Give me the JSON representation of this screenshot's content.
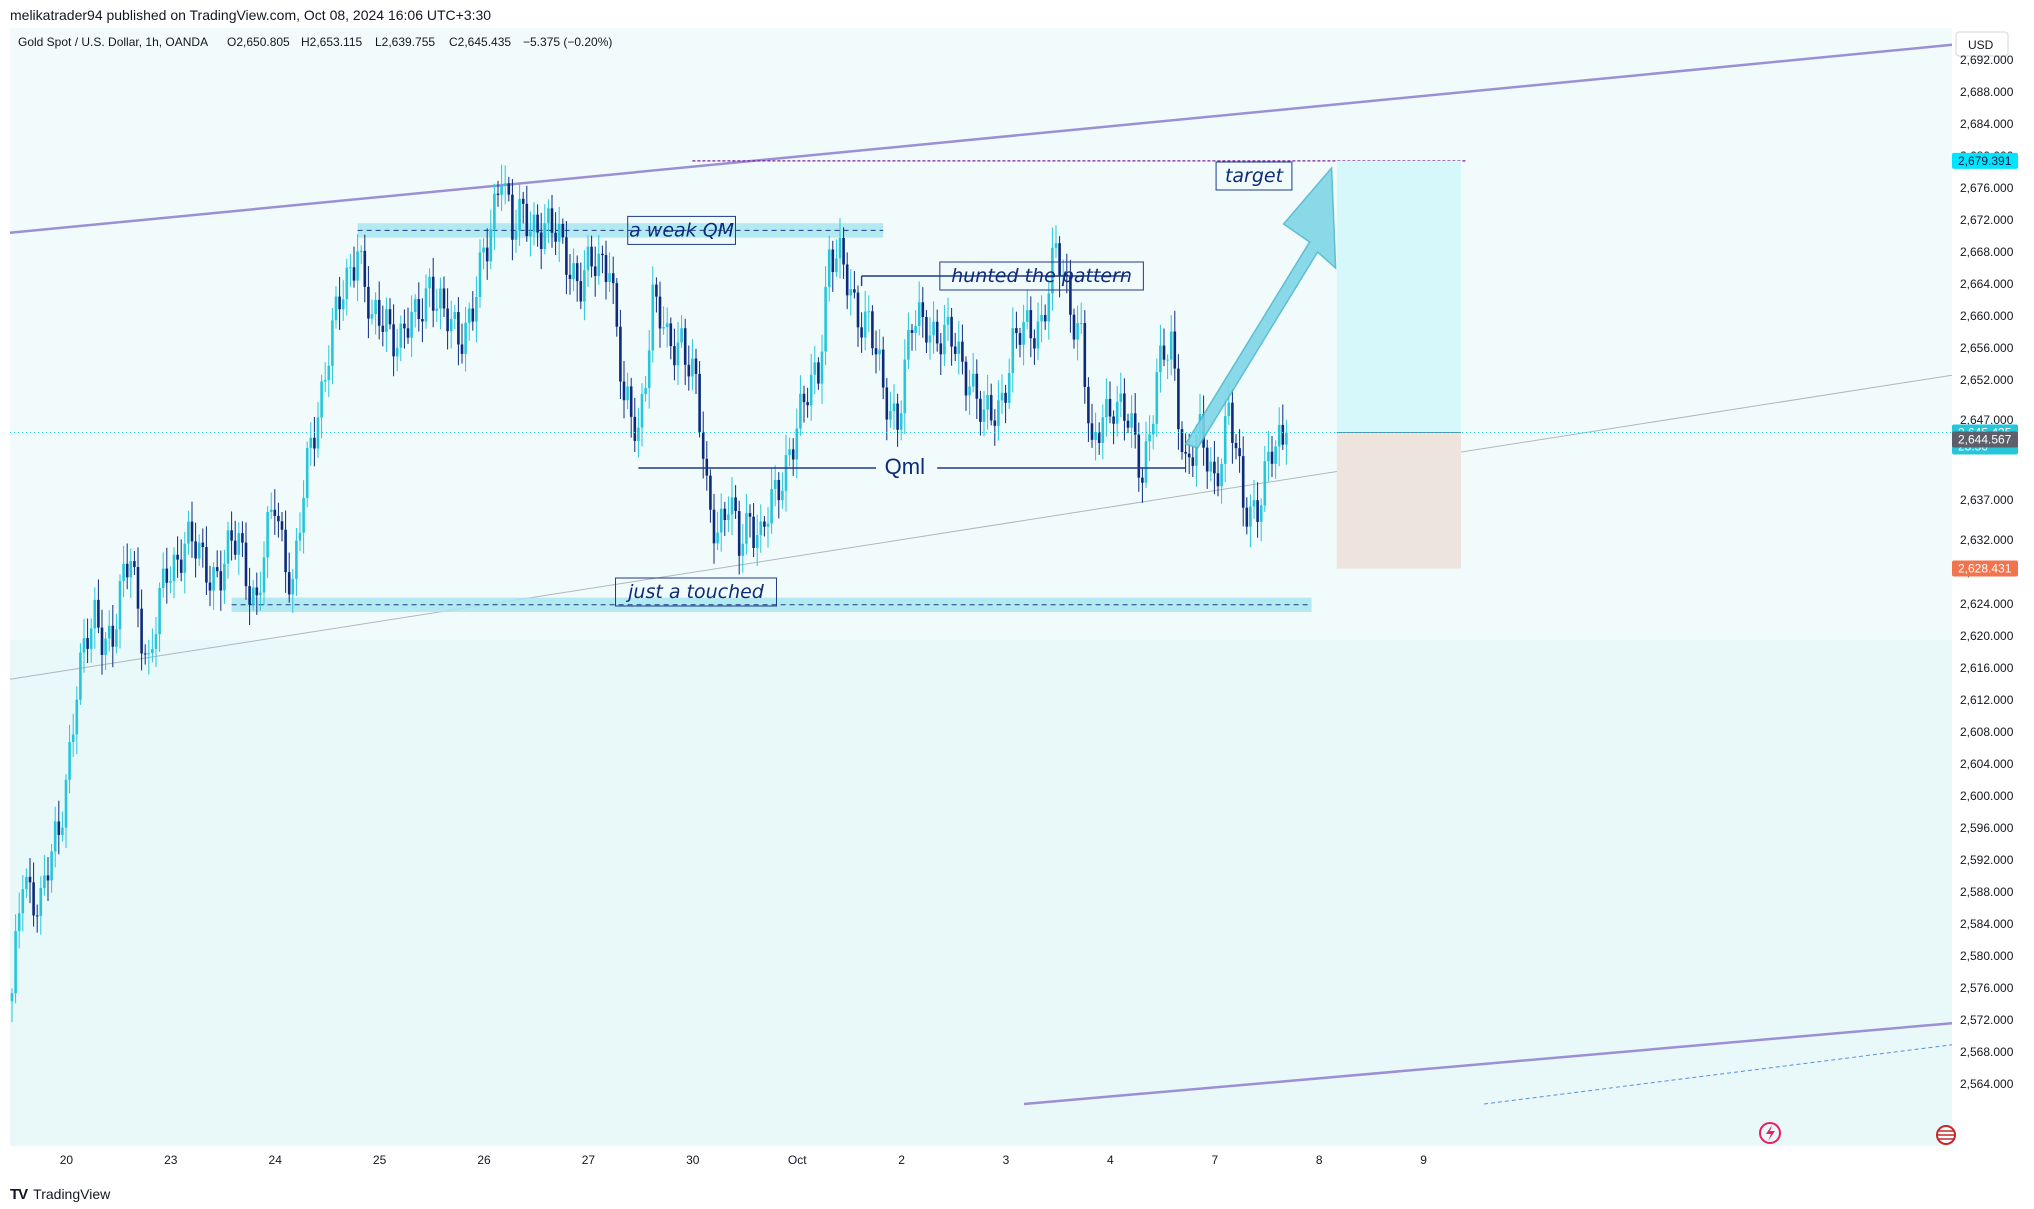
{
  "header": {
    "publisher": "melikatrader94 published on TradingView.com, Oct 08, 2024 16:06 UTC+3:30"
  },
  "footer": {
    "logo_icon": "tradingview-logo-icon",
    "brand": "TradingView"
  },
  "chart_data": {
    "type": "candlestick",
    "symbol_line": "Gold Spot / U.S. Dollar, 1h, OANDA",
    "ohlc": {
      "open": "O2,650.805",
      "high": "H2,653.115",
      "low": "L2,639.755",
      "close": "C2,645.435",
      "change": "−5.375 (−0.20%)"
    },
    "currency": "USD",
    "y_range": [
      2560,
      2696
    ],
    "y_ticks": [
      "2,692.000",
      "2,688.000",
      "2,684.000",
      "2,680.000",
      "2,676.000",
      "2,672.000",
      "2,668.000",
      "2,664.000",
      "2,660.000",
      "2,656.000",
      "2,652.000",
      "2,647.000",
      "2,637.000",
      "2,632.000",
      "2,628.000",
      "2,624.000",
      "2,620.000",
      "2,616.000",
      "2,612.000",
      "2,608.000",
      "2,604.000",
      "2,600.000",
      "2,596.000",
      "2,592.000",
      "2,588.000",
      "2,584.000",
      "2,580.000",
      "2,576.000",
      "2,572.000",
      "2,568.000",
      "2,564.000"
    ],
    "x_ticks": [
      {
        "label": "20",
        "bar": 4
      },
      {
        "label": "23",
        "bar": 33
      },
      {
        "label": "24",
        "bar": 62
      },
      {
        "label": "25",
        "bar": 91
      },
      {
        "label": "26",
        "bar": 120
      },
      {
        "label": "27",
        "bar": 149
      },
      {
        "label": "30",
        "bar": 178
      },
      {
        "label": "Oct",
        "bar": 207
      },
      {
        "label": "2",
        "bar": 236
      },
      {
        "label": "3",
        "bar": 265
      },
      {
        "label": "4",
        "bar": 294
      },
      {
        "label": "7",
        "bar": 323
      },
      {
        "label": "8",
        "bar": 352
      },
      {
        "label": "9",
        "bar": 381
      }
    ],
    "price_labels": [
      {
        "text": "2,679.391",
        "value": 2679.391,
        "bg": "#00e5ff",
        "fg": "#0b1a3a"
      },
      {
        "text": "2,645.435",
        "value": 2645.435,
        "bg": "#26c6da",
        "fg": "#ffffff",
        "sub": "23:50"
      },
      {
        "text": "2,644.567",
        "value": 2644.567,
        "bg": "#5d606b",
        "fg": "#ffffff"
      },
      {
        "text": "2,628.431",
        "value": 2628.431,
        "bg": "#f2744f",
        "fg": "#ffffff"
      }
    ],
    "annotations": [
      {
        "text": "a weak QM",
        "value": 2670.7,
        "bar": 186
      },
      {
        "text": "hunted the pattern",
        "value": 2665.0,
        "bar": 286
      },
      {
        "text": "Qml",
        "value": 2641.0,
        "bar": 248
      },
      {
        "text": "just a touched",
        "value": 2625.5,
        "bar": 190
      },
      {
        "text": "target",
        "value": 2677.5,
        "bar": 345
      }
    ],
    "levels": {
      "weak_qm": 2670.7,
      "hunted": 2665.0,
      "qml": 2641.0,
      "touched": 2623.9,
      "target": 2679.391
    },
    "position": {
      "entry": 2645.435,
      "target": 2679.391,
      "stop": 2628.431
    },
    "colors": {
      "up": "#26c6da",
      "down": "#0d2b7a",
      "channel": "#9c8fd6",
      "zone": "#a8e6ef",
      "profit": "#d6f8fb",
      "loss": "#ece4dd"
    },
    "anchors": [
      [
        0,
        2574
      ],
      [
        3,
        2590
      ],
      [
        8,
        2587
      ],
      [
        13,
        2595
      ],
      [
        18,
        2614
      ],
      [
        23,
        2622
      ],
      [
        28,
        2620
      ],
      [
        33,
        2630
      ],
      [
        38,
        2616
      ],
      [
        43,
        2628
      ],
      [
        48,
        2632
      ],
      [
        53,
        2629
      ],
      [
        58,
        2628
      ],
      [
        63,
        2632
      ],
      [
        68,
        2624
      ],
      [
        73,
        2637
      ],
      [
        78,
        2626
      ],
      [
        83,
        2644
      ],
      [
        88,
        2656
      ],
      [
        93,
        2664
      ],
      [
        96,
        2670
      ],
      [
        100,
        2658
      ],
      [
        104,
        2660
      ],
      [
        108,
        2657
      ],
      [
        112,
        2659
      ],
      [
        116,
        2665
      ],
      [
        120,
        2659
      ],
      [
        124,
        2658
      ],
      [
        128,
        2661
      ],
      [
        132,
        2668
      ],
      [
        136,
        2680
      ],
      [
        139,
        2670
      ],
      [
        142,
        2672
      ],
      [
        146,
        2672
      ],
      [
        150,
        2670
      ],
      [
        154,
        2668
      ],
      [
        158,
        2664
      ],
      [
        162,
        2666
      ],
      [
        166,
        2668
      ],
      [
        170,
        2648
      ],
      [
        174,
        2646
      ],
      [
        178,
        2662
      ],
      [
        182,
        2656
      ],
      [
        186,
        2658
      ],
      [
        190,
        2650
      ],
      [
        193,
        2638
      ],
      [
        196,
        2634
      ],
      [
        199,
        2636
      ],
      [
        202,
        2631
      ],
      [
        205,
        2636
      ],
      [
        208,
        2632
      ],
      [
        212,
        2637
      ],
      [
        216,
        2644
      ],
      [
        220,
        2648
      ],
      [
        224,
        2654
      ],
      [
        227,
        2668
      ],
      [
        230,
        2666
      ],
      [
        234,
        2662
      ],
      [
        238,
        2659
      ],
      [
        242,
        2650
      ],
      [
        246,
        2648
      ],
      [
        250,
        2658
      ],
      [
        254,
        2660
      ],
      [
        258,
        2657
      ],
      [
        262,
        2656
      ],
      [
        266,
        2653
      ],
      [
        270,
        2646
      ],
      [
        274,
        2649
      ],
      [
        278,
        2656
      ],
      [
        282,
        2658
      ],
      [
        286,
        2660
      ],
      [
        290,
        2667
      ],
      [
        294,
        2662
      ],
      [
        297,
        2658
      ],
      [
        300,
        2641
      ],
      [
        303,
        2648
      ],
      [
        306,
        2650
      ],
      [
        310,
        2646
      ],
      [
        314,
        2641
      ],
      [
        318,
        2652
      ],
      [
        322,
        2656
      ],
      [
        326,
        2642
      ],
      [
        330,
        2644
      ],
      [
        334,
        2640
      ],
      [
        338,
        2648
      ],
      [
        342,
        2636
      ],
      [
        346,
        2637
      ],
      [
        350,
        2642
      ],
      [
        354,
        2645.435
      ]
    ]
  }
}
